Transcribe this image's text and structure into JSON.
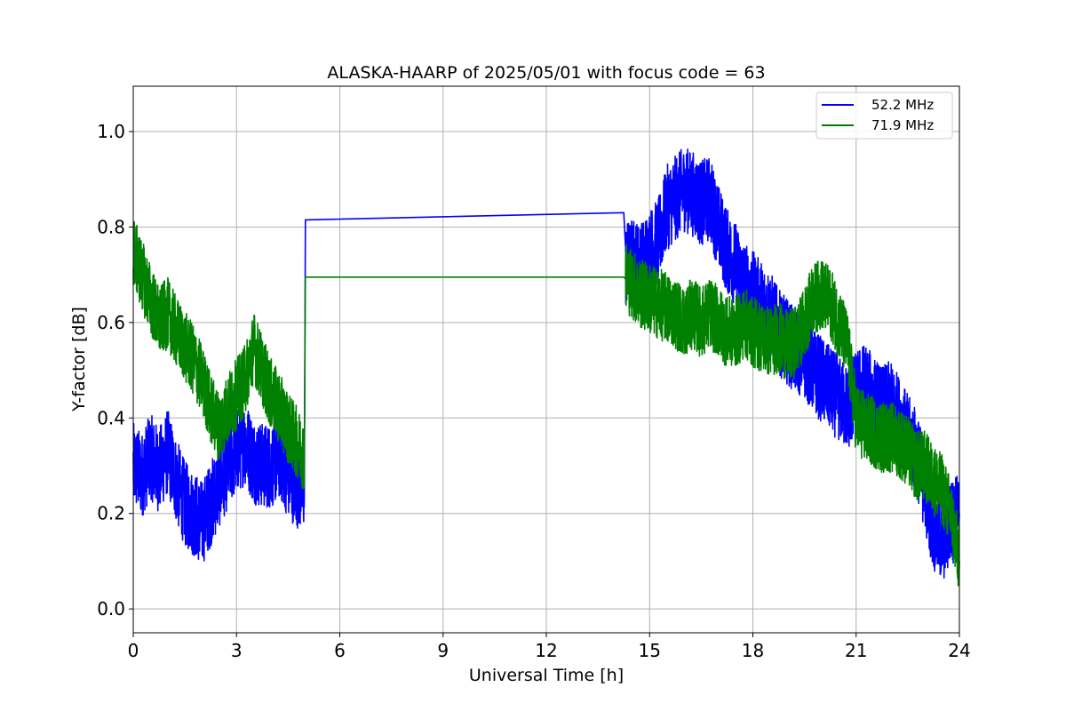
{
  "chart_data": {
    "type": "line",
    "title": "ALASKA-HAARP of 2025/05/01 with focus code = 63",
    "xlabel": "Universal Time [h]",
    "ylabel": "Y-factor [dB]",
    "xlim": [
      0,
      24
    ],
    "ylim": [
      -0.05,
      1.095
    ],
    "xticks": [
      0,
      3,
      6,
      9,
      12,
      15,
      18,
      21,
      24
    ],
    "yticks": [
      0.0,
      0.2,
      0.4,
      0.6,
      0.8,
      1.0
    ],
    "xtick_labels": [
      "0",
      "3",
      "6",
      "9",
      "12",
      "15",
      "18",
      "21",
      "24"
    ],
    "ytick_labels": [
      "0.0",
      "0.2",
      "0.4",
      "0.6",
      "0.8",
      "1.0"
    ],
    "grid": true,
    "legend_position": "top-right",
    "series": [
      {
        "name": "52.2 MHz",
        "color": "#0000ff",
        "x": [
          0.0,
          0.25,
          0.5,
          0.75,
          1.0,
          1.25,
          1.5,
          1.75,
          2.0,
          2.25,
          2.5,
          2.75,
          3.0,
          3.25,
          3.5,
          3.75,
          4.0,
          4.25,
          4.5,
          4.75,
          4.97,
          5.0,
          14.25,
          14.3,
          14.5,
          14.75,
          15.0,
          15.25,
          15.5,
          15.75,
          16.0,
          16.25,
          16.5,
          16.75,
          17.0,
          17.25,
          17.5,
          17.75,
          18.0,
          18.25,
          18.5,
          18.75,
          19.0,
          19.25,
          19.5,
          19.75,
          20.0,
          20.25,
          20.5,
          20.75,
          21.0,
          21.25,
          21.5,
          21.75,
          22.0,
          22.25,
          22.5,
          22.75,
          23.0,
          23.25,
          23.5,
          23.75,
          24.0
        ],
        "y": [
          0.3,
          0.28,
          0.32,
          0.29,
          0.33,
          0.27,
          0.22,
          0.2,
          0.18,
          0.22,
          0.26,
          0.3,
          0.33,
          0.35,
          0.31,
          0.3,
          0.3,
          0.32,
          0.28,
          0.26,
          0.25,
          0.815,
          0.83,
          0.72,
          0.73,
          0.72,
          0.75,
          0.77,
          0.84,
          0.86,
          0.88,
          0.87,
          0.85,
          0.86,
          0.8,
          0.75,
          0.72,
          0.68,
          0.66,
          0.64,
          0.62,
          0.58,
          0.56,
          0.54,
          0.53,
          0.5,
          0.48,
          0.46,
          0.44,
          0.42,
          0.45,
          0.47,
          0.44,
          0.42,
          0.43,
          0.4,
          0.36,
          0.33,
          0.25,
          0.17,
          0.14,
          0.18,
          0.2
        ]
      },
      {
        "name": "71.9 MHz",
        "color": "#008000",
        "x": [
          0.0,
          0.25,
          0.5,
          0.75,
          1.0,
          1.25,
          1.5,
          1.75,
          2.0,
          2.25,
          2.5,
          2.75,
          3.0,
          3.25,
          3.5,
          3.75,
          4.0,
          4.25,
          4.5,
          4.75,
          4.97,
          5.0,
          14.25,
          14.3,
          14.5,
          14.75,
          15.0,
          15.25,
          15.5,
          15.75,
          16.0,
          16.25,
          16.5,
          16.75,
          17.0,
          17.25,
          17.5,
          17.75,
          18.0,
          18.25,
          18.5,
          18.75,
          19.0,
          19.25,
          19.5,
          19.75,
          20.0,
          20.25,
          20.5,
          20.75,
          21.0,
          21.25,
          21.5,
          21.75,
          22.0,
          22.25,
          22.5,
          22.75,
          23.0,
          23.25,
          23.5,
          23.75,
          24.0
        ],
        "y": [
          0.75,
          0.7,
          0.65,
          0.6,
          0.62,
          0.58,
          0.55,
          0.52,
          0.48,
          0.42,
          0.38,
          0.42,
          0.45,
          0.48,
          0.55,
          0.5,
          0.45,
          0.42,
          0.38,
          0.35,
          0.32,
          0.695,
          0.695,
          0.7,
          0.68,
          0.66,
          0.65,
          0.64,
          0.63,
          0.62,
          0.6,
          0.62,
          0.6,
          0.62,
          0.6,
          0.58,
          0.58,
          0.6,
          0.58,
          0.57,
          0.56,
          0.57,
          0.55,
          0.56,
          0.6,
          0.65,
          0.66,
          0.64,
          0.6,
          0.55,
          0.4,
          0.38,
          0.37,
          0.36,
          0.36,
          0.35,
          0.33,
          0.3,
          0.3,
          0.27,
          0.25,
          0.2,
          0.1
        ]
      }
    ]
  }
}
